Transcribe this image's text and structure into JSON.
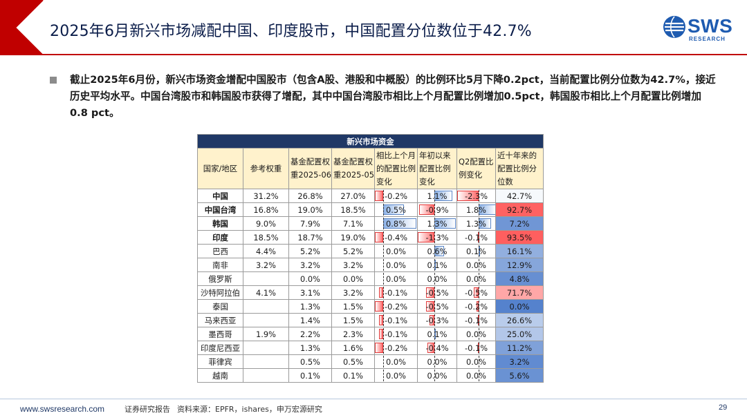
{
  "header": {
    "title": "2025年6月新兴市场减配中国、印度股市，中国配置分位数位于42.7%",
    "logo_text": "SWS",
    "logo_sub": "RESEARCH",
    "accent_color": "#c00000"
  },
  "body": {
    "paragraph": "截止2025年6月份，新兴市场资金增配中国股市（包含A股、港股和中概股）的比例环比5月下降0.2pct，当前配置比例分位数为42.7%，接近历史平均水平。中国台湾股市和韩国股市获得了增配，其中中国台湾股市相比上个月配置比例增加0.5pct，韩国股市相比上个月配置比例增加0.8 pct。"
  },
  "table": {
    "caption": "新兴市场资金",
    "headers": [
      "国家/地区",
      "参考权重",
      "基金配置权重2025-06",
      "基金配置权重2025-05",
      "相比上个月的配置比例变化",
      "年初以来配置比例变化",
      "Q2配置比例变化",
      "近十年来的配置比例分位数"
    ],
    "rows": [
      {
        "name": "中国",
        "bold": true,
        "ref": "31.2%",
        "w06": "26.8%",
        "w05": "27.0%",
        "mom": "-0.2%",
        "mom_v": -0.2,
        "ytd": "1.1%",
        "ytd_v": 1.1,
        "q2": "-2.3%",
        "q2_v": -2.3,
        "pctl": "42.7%",
        "pctl_v": 42.7
      },
      {
        "name": "中国台湾",
        "bold": true,
        "ref": "16.8%",
        "w06": "19.0%",
        "w05": "18.5%",
        "mom": "0.5%",
        "mom_v": 0.5,
        "ytd": "-0.9%",
        "ytd_v": -0.9,
        "q2": "1.8%",
        "q2_v": 1.8,
        "pctl": "92.7%",
        "pctl_v": 92.7
      },
      {
        "name": "韩国",
        "bold": true,
        "ref": "9.0%",
        "w06": "7.9%",
        "w05": "7.1%",
        "mom": "0.8%",
        "mom_v": 0.8,
        "ytd": "1.3%",
        "ytd_v": 1.3,
        "q2": "1.3%",
        "q2_v": 1.3,
        "pctl": "7.2%",
        "pctl_v": 7.2
      },
      {
        "name": "印度",
        "bold": true,
        "ref": "18.5%",
        "w06": "18.7%",
        "w05": "19.0%",
        "mom": "-0.4%",
        "mom_v": -0.4,
        "ytd": "-1.3%",
        "ytd_v": -1.3,
        "q2": "-0.1%",
        "q2_v": -0.1,
        "pctl": "93.5%",
        "pctl_v": 93.5
      },
      {
        "name": "巴西",
        "bold": false,
        "ref": "4.4%",
        "w06": "5.2%",
        "w05": "5.2%",
        "mom": "0.0%",
        "mom_v": 0.0,
        "ytd": "0.6%",
        "ytd_v": 0.6,
        "q2": "0.1%",
        "q2_v": 0.1,
        "pctl": "16.1%",
        "pctl_v": 16.1
      },
      {
        "name": "南非",
        "bold": false,
        "ref": "3.2%",
        "w06": "3.2%",
        "w05": "3.2%",
        "mom": "0.0%",
        "mom_v": 0.0,
        "ytd": "0.1%",
        "ytd_v": 0.1,
        "q2": "0.0%",
        "q2_v": 0.0,
        "pctl": "12.9%",
        "pctl_v": 12.9
      },
      {
        "name": "俄罗斯",
        "bold": false,
        "ref": "",
        "w06": "0.0%",
        "w05": "0.0%",
        "mom": "0.0%",
        "mom_v": 0.0,
        "ytd": "0.0%",
        "ytd_v": 0.0,
        "q2": "0.0%",
        "q2_v": 0.0,
        "pctl": "4.8%",
        "pctl_v": 4.8
      },
      {
        "name": "沙特阿拉伯",
        "bold": false,
        "ref": "4.1%",
        "w06": "3.1%",
        "w05": "3.2%",
        "mom": "-0.1%",
        "mom_v": -0.1,
        "ytd": "-0.5%",
        "ytd_v": -0.5,
        "q2": "-0.5%",
        "q2_v": -0.5,
        "pctl": "71.7%",
        "pctl_v": 71.7
      },
      {
        "name": "泰国",
        "bold": false,
        "ref": "",
        "w06": "1.3%",
        "w05": "1.5%",
        "mom": "-0.2%",
        "mom_v": -0.2,
        "ytd": "-0.5%",
        "ytd_v": -0.5,
        "q2": "-0.2%",
        "q2_v": -0.2,
        "pctl": "0.0%",
        "pctl_v": 0.0
      },
      {
        "name": "马来西亚",
        "bold": false,
        "ref": "",
        "w06": "1.4%",
        "w05": "1.5%",
        "mom": "-0.1%",
        "mom_v": -0.1,
        "ytd": "-0.3%",
        "ytd_v": -0.3,
        "q2": "-0.1%",
        "q2_v": -0.1,
        "pctl": "26.6%",
        "pctl_v": 26.6
      },
      {
        "name": "墨西哥",
        "bold": false,
        "ref": "1.9%",
        "w06": "2.2%",
        "w05": "2.3%",
        "mom": "-0.1%",
        "mom_v": -0.1,
        "ytd": "0.1%",
        "ytd_v": 0.1,
        "q2": "0.0%",
        "q2_v": 0.0,
        "pctl": "25.0%",
        "pctl_v": 25.0
      },
      {
        "name": "印度尼西亚",
        "bold": false,
        "ref": "",
        "w06": "1.3%",
        "w05": "1.6%",
        "mom": "-0.2%",
        "mom_v": -0.2,
        "ytd": "-0.4%",
        "ytd_v": -0.4,
        "q2": "-0.1%",
        "q2_v": -0.1,
        "pctl": "11.2%",
        "pctl_v": 11.2
      },
      {
        "name": "菲律宾",
        "bold": false,
        "ref": "",
        "w06": "0.5%",
        "w05": "0.5%",
        "mom": "0.0%",
        "mom_v": 0.0,
        "ytd": "0.0%",
        "ytd_v": 0.0,
        "q2": "0.0%",
        "q2_v": 0.0,
        "pctl": "3.2%",
        "pctl_v": 3.2
      },
      {
        "name": "越南",
        "bold": false,
        "ref": "",
        "w06": "0.1%",
        "w05": "0.1%",
        "mom": "0.0%",
        "mom_v": 0.0,
        "ytd": "0.0%",
        "ytd_v": 0.0,
        "q2": "0.0%",
        "q2_v": 0.0,
        "pctl": "5.6%",
        "pctl_v": 5.6
      }
    ],
    "colors": {
      "header_bg": "#1f3866",
      "subheader_bg": "#fff2cc",
      "neg": "#ff6b6b",
      "pos": "#8fb4e8"
    }
  },
  "footer": {
    "site": "www.swsresearch.com",
    "report_type": "证券研究报告",
    "source": "资料来源：EPFR，ishares，申万宏源研究",
    "page": "29"
  }
}
